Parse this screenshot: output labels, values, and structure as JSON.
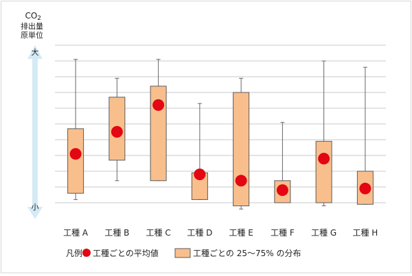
{
  "chart_data": {
    "type": "boxplot",
    "y_axis": {
      "title_line1": "CO",
      "title_subscript": "2",
      "title_line2": "排出量",
      "title_line3": "原単位",
      "top_label": "大",
      "bottom_label": "小",
      "tick_labels_printed": false,
      "ylim": [
        0,
        10
      ]
    },
    "grid": true,
    "categories": [
      "工種 A",
      "工種 B",
      "工種 C",
      "工種 D",
      "工種 E",
      "工種 F",
      "工種 G",
      "工種 H"
    ],
    "whisker_min": [
      0.2,
      1.4,
      1.4,
      0.2,
      -0.4,
      0.0,
      -0.2,
      -0.1
    ],
    "q1": [
      0.6,
      2.7,
      1.4,
      0.2,
      -0.2,
      0.0,
      0.0,
      -0.1
    ],
    "q3": [
      4.7,
      6.7,
      7.4,
      1.9,
      7.0,
      1.4,
      3.9,
      2.0
    ],
    "whisker_max": [
      9.1,
      7.9,
      9.1,
      6.3,
      7.9,
      5.1,
      9.0,
      8.6
    ],
    "mean": [
      3.1,
      4.5,
      6.2,
      1.8,
      1.4,
      0.8,
      2.8,
      0.9
    ],
    "colors": {
      "box_fill": "#f8bf8d",
      "box_stroke": "#5a5a5a",
      "mean_marker": "#e30613",
      "whisker": "#666666",
      "grid": "#c8c8c8",
      "arrow": "#d4eaf6"
    },
    "legend": {
      "prefix": "凡例：",
      "mean_label": "工種ごとの平均値",
      "box_label": "工種ごとの 25〜75% の分布",
      "placement": "bottom"
    }
  }
}
